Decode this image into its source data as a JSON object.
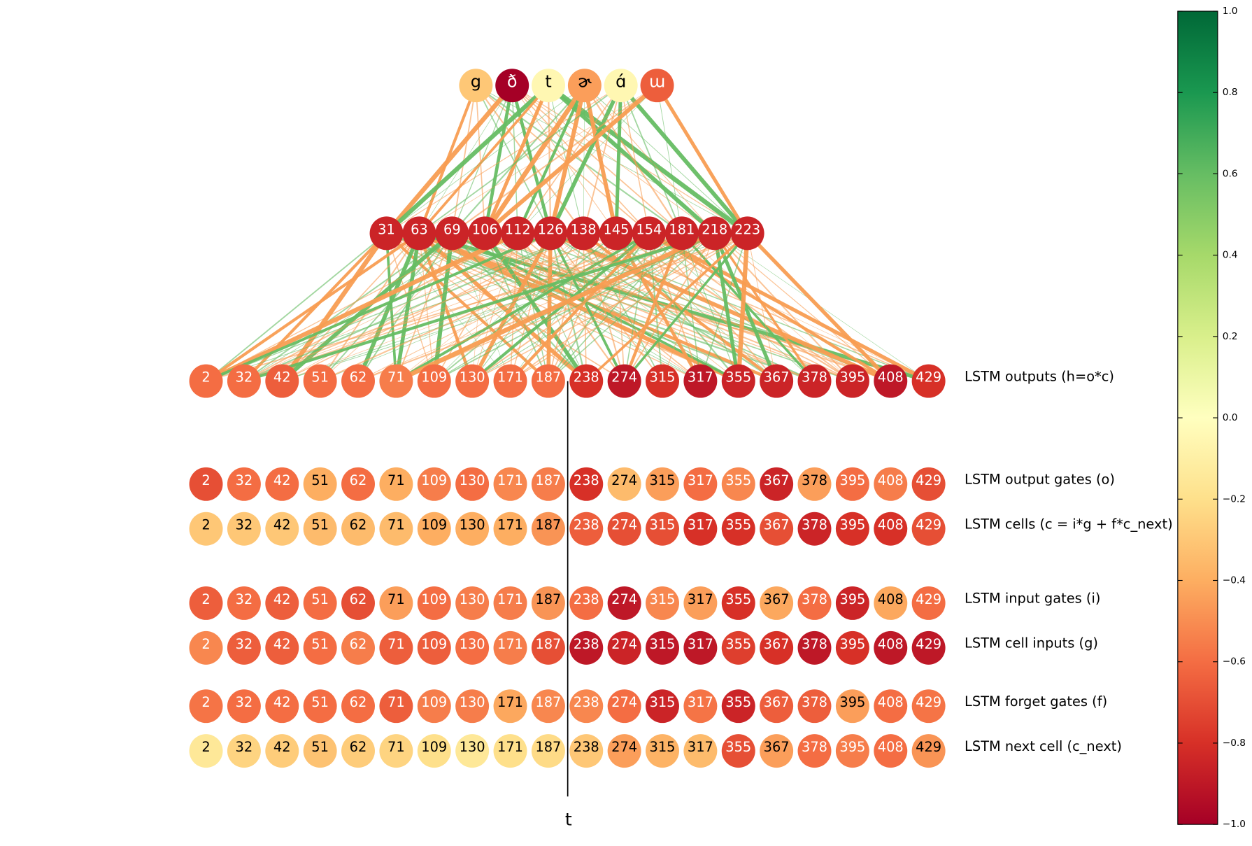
{
  "top_layer": {
    "labels": [
      "g",
      "ð",
      "t",
      "ɚ",
      "ɑ́",
      "ɯ"
    ],
    "values": [
      -0.3,
      -1.0,
      -0.05,
      -0.45,
      -0.05,
      -0.65
    ]
  },
  "hidden_layer": {
    "labels": [
      31,
      63,
      69,
      106,
      112,
      126,
      138,
      145,
      154,
      181,
      218,
      223
    ],
    "values": [
      -0.85,
      -0.85,
      -0.85,
      -0.85,
      -0.85,
      -0.85,
      -0.85,
      -0.85,
      -0.85,
      -0.85,
      -0.85,
      -0.85
    ]
  },
  "columns": [
    2,
    32,
    42,
    51,
    62,
    71,
    109,
    130,
    171,
    187,
    238,
    274,
    315,
    317,
    355,
    367,
    378,
    395,
    408,
    429
  ],
  "rows": [
    {
      "label": "LSTM outputs (h=o*c)",
      "values": [
        -0.6,
        -0.6,
        -0.65,
        -0.6,
        -0.6,
        -0.55,
        -0.6,
        -0.6,
        -0.6,
        -0.6,
        -0.8,
        -0.9,
        -0.8,
        -0.9,
        -0.85,
        -0.85,
        -0.85,
        -0.85,
        -0.9,
        -0.8
      ]
    },
    {
      "label": "LSTM output gates (o)",
      "values": [
        -0.7,
        -0.6,
        -0.6,
        -0.4,
        -0.6,
        -0.4,
        -0.55,
        -0.6,
        -0.52,
        -0.55,
        -0.8,
        -0.35,
        -0.45,
        -0.6,
        -0.52,
        -0.85,
        -0.45,
        -0.6,
        -0.55,
        -0.7
      ]
    },
    {
      "label": "LSTM cells (c = i*g + f*c_next)",
      "values": [
        -0.3,
        -0.3,
        -0.3,
        -0.35,
        -0.35,
        -0.35,
        -0.4,
        -0.4,
        -0.4,
        -0.48,
        -0.65,
        -0.7,
        -0.7,
        -0.8,
        -0.8,
        -0.7,
        -0.85,
        -0.8,
        -0.8,
        -0.7
      ]
    },
    {
      "label": "LSTM input gates (i)",
      "values": [
        -0.65,
        -0.6,
        -0.65,
        -0.6,
        -0.7,
        -0.45,
        -0.6,
        -0.55,
        -0.55,
        -0.48,
        -0.6,
        -0.9,
        -0.52,
        -0.45,
        -0.8,
        -0.42,
        -0.6,
        -0.85,
        -0.42,
        -0.6
      ]
    },
    {
      "label": "LSTM cell inputs (g)",
      "values": [
        -0.52,
        -0.65,
        -0.65,
        -0.6,
        -0.55,
        -0.65,
        -0.65,
        -0.6,
        -0.55,
        -0.7,
        -0.9,
        -0.85,
        -0.9,
        -0.9,
        -0.75,
        -0.8,
        -0.9,
        -0.8,
        -0.9,
        -0.9
      ]
    },
    {
      "label": "LSTM forget gates (f)",
      "values": [
        -0.58,
        -0.6,
        -0.6,
        -0.6,
        -0.6,
        -0.65,
        -0.55,
        -0.55,
        -0.42,
        -0.52,
        -0.52,
        -0.6,
        -0.85,
        -0.58,
        -0.85,
        -0.65,
        -0.65,
        -0.45,
        -0.6,
        -0.58
      ]
    },
    {
      "label": "LSTM next cell (c_next)",
      "values": [
        -0.15,
        -0.25,
        -0.28,
        -0.32,
        -0.28,
        -0.25,
        -0.2,
        -0.15,
        -0.2,
        -0.22,
        -0.3,
        -0.45,
        -0.38,
        -0.35,
        -0.7,
        -0.45,
        -0.6,
        -0.55,
        -0.6,
        -0.48
      ]
    }
  ],
  "time_label": "t",
  "colorbar": {
    "lim": [
      -1.0,
      1.0
    ],
    "ticks": [
      {
        "value": 1.0,
        "label": "1.0"
      },
      {
        "value": 0.8,
        "label": "0.8"
      },
      {
        "value": 0.6,
        "label": "0.6"
      },
      {
        "value": 0.4,
        "label": "0.4"
      },
      {
        "value": 0.2,
        "label": "0.2"
      },
      {
        "value": 0.0,
        "label": "0.0"
      },
      {
        "value": -0.2,
        "label": "−0.2"
      },
      {
        "value": -0.4,
        "label": "−0.4"
      },
      {
        "value": -0.6,
        "label": "−0.6"
      },
      {
        "value": -0.8,
        "label": "−0.8"
      },
      {
        "value": -1.0,
        "label": "−1.0"
      }
    ]
  }
}
